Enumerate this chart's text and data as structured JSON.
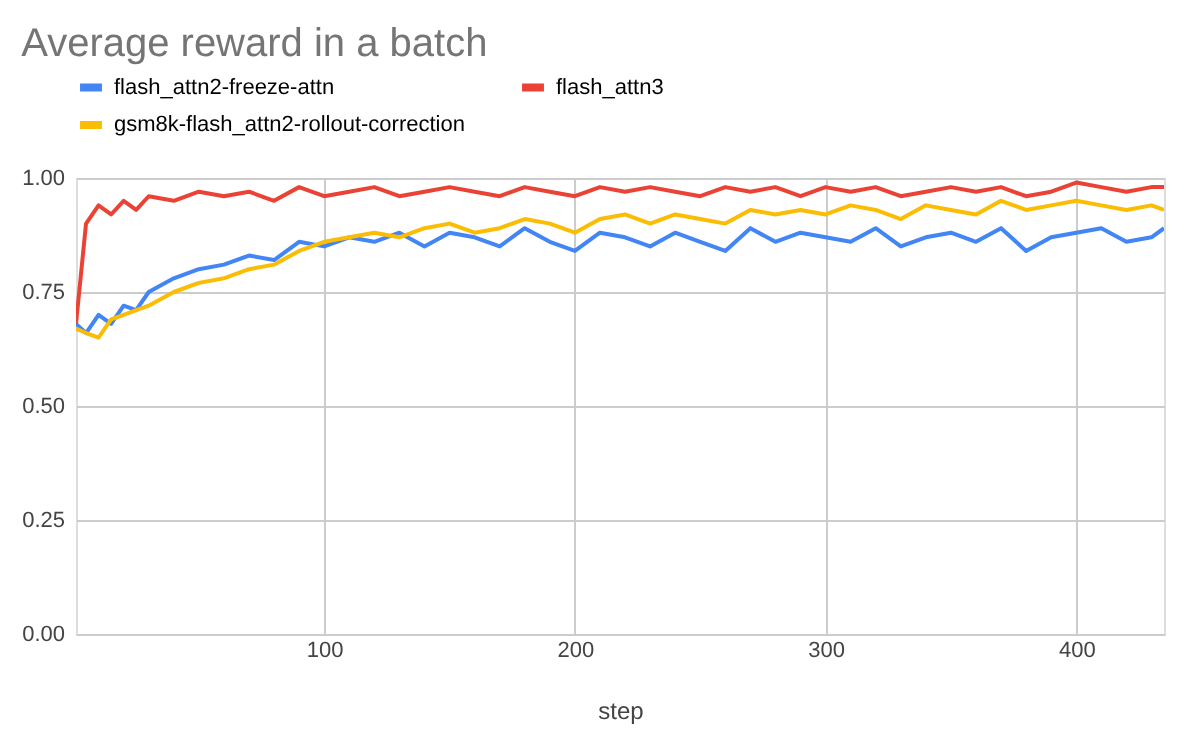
{
  "chart_data": {
    "type": "line",
    "title": "Average reward in a batch",
    "xlabel": "step",
    "x": [
      1,
      5,
      10,
      15,
      20,
      25,
      30,
      40,
      50,
      60,
      70,
      80,
      90,
      100,
      110,
      120,
      130,
      140,
      150,
      160,
      170,
      180,
      190,
      200,
      210,
      220,
      230,
      240,
      250,
      260,
      270,
      280,
      290,
      300,
      310,
      320,
      330,
      340,
      350,
      360,
      370,
      380,
      390,
      400,
      410,
      420,
      430,
      435
    ],
    "series": [
      {
        "name": "flash_attn2-freeze-attn",
        "color": "#4285f4",
        "values": [
          0.68,
          0.66,
          0.7,
          0.68,
          0.72,
          0.71,
          0.75,
          0.78,
          0.8,
          0.81,
          0.83,
          0.82,
          0.86,
          0.85,
          0.87,
          0.86,
          0.88,
          0.85,
          0.88,
          0.87,
          0.85,
          0.89,
          0.86,
          0.84,
          0.88,
          0.87,
          0.85,
          0.88,
          0.86,
          0.84,
          0.89,
          0.86,
          0.88,
          0.87,
          0.86,
          0.89,
          0.85,
          0.87,
          0.88,
          0.86,
          0.89,
          0.84,
          0.87,
          0.88,
          0.89,
          0.86,
          0.87,
          0.89
        ]
      },
      {
        "name": "flash_attn3",
        "color": "#ea4335",
        "values": [
          0.68,
          0.9,
          0.94,
          0.92,
          0.95,
          0.93,
          0.96,
          0.95,
          0.97,
          0.96,
          0.97,
          0.95,
          0.98,
          0.96,
          0.97,
          0.98,
          0.96,
          0.97,
          0.98,
          0.97,
          0.96,
          0.98,
          0.97,
          0.96,
          0.98,
          0.97,
          0.98,
          0.97,
          0.96,
          0.98,
          0.97,
          0.98,
          0.96,
          0.98,
          0.97,
          0.98,
          0.96,
          0.97,
          0.98,
          0.97,
          0.98,
          0.96,
          0.97,
          0.99,
          0.98,
          0.97,
          0.98,
          0.98
        ]
      },
      {
        "name": "gsm8k-flash_attn2-rollout-correction",
        "color": "#fbbc04",
        "values": [
          0.67,
          0.66,
          0.65,
          0.69,
          0.7,
          0.71,
          0.72,
          0.75,
          0.77,
          0.78,
          0.8,
          0.81,
          0.84,
          0.86,
          0.87,
          0.88,
          0.87,
          0.89,
          0.9,
          0.88,
          0.89,
          0.91,
          0.9,
          0.88,
          0.91,
          0.92,
          0.9,
          0.92,
          0.91,
          0.9,
          0.93,
          0.92,
          0.93,
          0.92,
          0.94,
          0.93,
          0.91,
          0.94,
          0.93,
          0.92,
          0.95,
          0.93,
          0.94,
          0.95,
          0.94,
          0.93,
          0.94,
          0.93
        ]
      }
    ],
    "xlim": [
      1,
      435
    ],
    "xticks": [
      100,
      200,
      300,
      400
    ],
    "ylim": [
      0,
      1
    ],
    "yticks": [
      {
        "value": 0,
        "label": "0.00"
      },
      {
        "value": 0.25,
        "label": "0.25"
      },
      {
        "value": 0.5,
        "label": "0.50"
      },
      {
        "value": 0.75,
        "label": "0.75"
      },
      {
        "value": 1,
        "label": "1.00"
      }
    ],
    "grid": true,
    "legend": "top",
    "marker": "none",
    "line_style": "solid"
  }
}
